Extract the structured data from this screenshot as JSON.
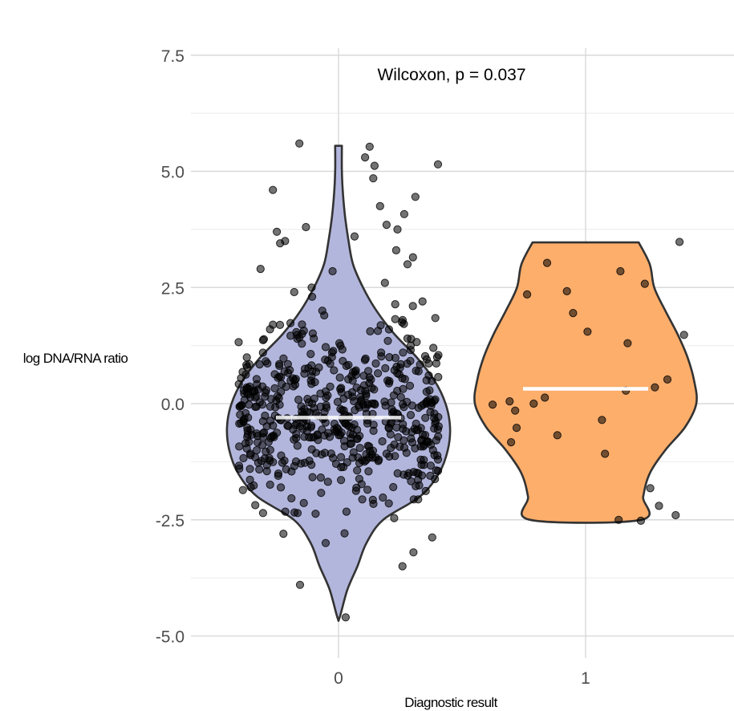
{
  "chart_data": {
    "type": "violin",
    "title": "",
    "xlabel": "Diagnostic result",
    "ylabel": "log DNA/RNA ratio",
    "annotation": "Wilcoxon, p = 0.037",
    "categories": [
      "0",
      "1"
    ],
    "ylim": [
      -5.2,
      7.5
    ],
    "yticks": [
      7.5,
      5.0,
      2.5,
      0.0,
      -2.5,
      -5.0
    ],
    "ytick_labels": [
      "7.5",
      "5.0",
      "2.5",
      "0.0",
      "-2.5",
      "-5.0"
    ],
    "grid": true,
    "legend": "none",
    "colors": {
      "group_0_fill": "#b3b6dc",
      "group_1_fill": "#fdae6b",
      "outline": "#333333",
      "points": "#000000",
      "median_line": "#ffffff",
      "grid": "#d9d9d9"
    },
    "series": [
      {
        "category": "0",
        "median": -0.3,
        "y_min": -4.6,
        "y_max": 5.55,
        "n_points": 600,
        "density_profile": [
          [
            5.55,
            0.03
          ],
          [
            5.0,
            0.03
          ],
          [
            4.5,
            0.04
          ],
          [
            4.0,
            0.06
          ],
          [
            3.5,
            0.09
          ],
          [
            3.0,
            0.13
          ],
          [
            2.5,
            0.22
          ],
          [
            2.0,
            0.34
          ],
          [
            1.5,
            0.5
          ],
          [
            1.0,
            0.7
          ],
          [
            0.5,
            0.86
          ],
          [
            0.0,
            0.96
          ],
          [
            -0.5,
            1.0
          ],
          [
            -1.0,
            0.98
          ],
          [
            -1.5,
            0.9
          ],
          [
            -2.0,
            0.73
          ],
          [
            -2.5,
            0.4
          ],
          [
            -3.0,
            0.25
          ],
          [
            -3.5,
            0.17
          ],
          [
            -4.0,
            0.08
          ],
          [
            -4.6,
            0.01
          ]
        ],
        "sample_points": [
          5.53,
          5.6,
          5.3,
          5.15,
          5.12,
          4.85,
          4.6,
          4.45,
          4.25,
          4.08,
          3.85,
          3.8,
          3.75,
          3.7,
          3.6,
          3.5,
          3.45,
          3.3,
          3.15,
          3.0,
          2.9,
          2.85,
          2.6,
          2.5,
          2.4,
          2.3,
          2.2,
          2.1,
          2.0,
          1.9,
          1.8,
          1.7,
          1.6,
          1.5,
          1.4,
          1.3,
          1.2,
          1.1,
          1.0,
          -2.8,
          -3.0,
          -3.2,
          -3.5,
          -3.9,
          -4.6
        ]
      },
      {
        "category": "1",
        "median": 0.32,
        "y_min": -2.5,
        "y_max": 3.47,
        "n_points": 38,
        "density_profile": [
          [
            3.47,
            0.48
          ],
          [
            3.0,
            0.58
          ],
          [
            2.5,
            0.62
          ],
          [
            2.0,
            0.72
          ],
          [
            1.5,
            0.83
          ],
          [
            1.0,
            0.92
          ],
          [
            0.5,
            0.98
          ],
          [
            0.0,
            1.0
          ],
          [
            -0.5,
            0.9
          ],
          [
            -1.0,
            0.72
          ],
          [
            -1.5,
            0.58
          ],
          [
            -2.0,
            0.52
          ],
          [
            -2.5,
            0.5
          ]
        ],
        "points": [
          3.48,
          3.03,
          2.85,
          2.58,
          2.42,
          2.35,
          1.95,
          1.55,
          1.48,
          1.3,
          0.52,
          0.35,
          0.28,
          0.13,
          0.05,
          0.0,
          -0.02,
          -0.15,
          -0.35,
          -0.52,
          -0.68,
          -0.83,
          -1.08,
          -1.82,
          -2.2,
          -2.4,
          -2.5,
          -2.52
        ]
      }
    ]
  }
}
